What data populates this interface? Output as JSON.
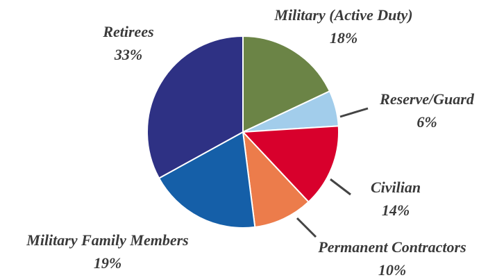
{
  "chart_data": {
    "type": "pie",
    "categories": [
      "Military (Active Duty)",
      "Reserve/Guard",
      "Civilian",
      "Permanent Contractors",
      "Military Family Members",
      "Retirees"
    ],
    "values": [
      18,
      6,
      14,
      10,
      19,
      33
    ],
    "value_labels": [
      "18%",
      "6%",
      "14%",
      "10%",
      "19%",
      "33%"
    ],
    "colors": [
      "#6b8446",
      "#a2cdeb",
      "#d8002c",
      "#ec7c4b",
      "#155fa8",
      "#2e3184"
    ]
  }
}
